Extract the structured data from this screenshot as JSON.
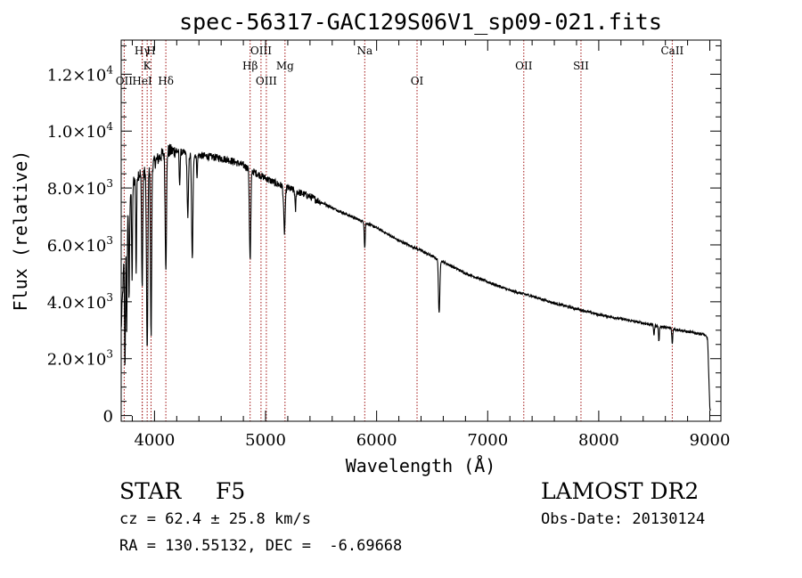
{
  "chart_data": {
    "type": "line",
    "title": "spec-56317-GAC129S06V1_sp09-021.fits",
    "xlabel": "Wavelength (Å)",
    "ylabel": "Flux (relative)",
    "xlim": [
      3700,
      9100
    ],
    "ylim": [
      -200,
      13200
    ],
    "grid": false,
    "x_ticks": [
      {
        "value": 4000,
        "label": "4000"
      },
      {
        "value": 5000,
        "label": "5000"
      },
      {
        "value": 6000,
        "label": "6000"
      },
      {
        "value": 7000,
        "label": "7000"
      },
      {
        "value": 8000,
        "label": "8000"
      },
      {
        "value": 9000,
        "label": "9000"
      }
    ],
    "y_ticks": [
      {
        "value": 0,
        "mantissa": "0",
        "exp": ""
      },
      {
        "value": 2000,
        "mantissa": "2.0×10",
        "exp": "3"
      },
      {
        "value": 4000,
        "mantissa": "4.0×10",
        "exp": "3"
      },
      {
        "value": 6000,
        "mantissa": "6.0×10",
        "exp": "3"
      },
      {
        "value": 8000,
        "mantissa": "8.0×10",
        "exp": "3"
      },
      {
        "value": 10000,
        "mantissa": "1.0×10",
        "exp": "4"
      },
      {
        "value": 12000,
        "mantissa": "1.2×10",
        "exp": "4"
      }
    ],
    "lines": [
      {
        "label": "Hγ",
        "wavelength": 3890,
        "row": 1
      },
      {
        "label": "H",
        "wavelength": 3969,
        "row": 1
      },
      {
        "label": "K",
        "wavelength": 3934,
        "row": 2
      },
      {
        "label": "OII",
        "wavelength": 3727,
        "row": 3
      },
      {
        "label": "HeI",
        "wavelength": 3889,
        "row": 3
      },
      {
        "label": "Hδ",
        "wavelength": 4102,
        "row": 3
      },
      {
        "label": "OIII",
        "wavelength": 4959,
        "row": 1
      },
      {
        "label": "Hβ",
        "wavelength": 4861,
        "row": 2
      },
      {
        "label": "OIII",
        "wavelength": 5007,
        "row": 3
      },
      {
        "label": "Mg",
        "wavelength": 5175,
        "row": 2
      },
      {
        "label": "Na",
        "wavelength": 5893,
        "row": 1
      },
      {
        "label": "OI",
        "wavelength": 6364,
        "row": 3
      },
      {
        "label": "OII",
        "wavelength": 7325,
        "row": 2
      },
      {
        "label": "SII",
        "wavelength": 7840,
        "row": 2
      },
      {
        "label": "CaII",
        "wavelength": 8662,
        "row": 1
      }
    ],
    "continuum": [
      [
        3700,
        3000
      ],
      [
        3730,
        6000
      ],
      [
        3760,
        7400
      ],
      [
        3800,
        8100
      ],
      [
        3840,
        8500
      ],
      [
        3900,
        8500
      ],
      [
        4000,
        8900
      ],
      [
        4050,
        9100
      ],
      [
        4100,
        9300
      ],
      [
        4200,
        9300
      ],
      [
        4300,
        9200
      ],
      [
        4400,
        9150
      ],
      [
        4500,
        9100
      ],
      [
        4600,
        9050
      ],
      [
        4700,
        8950
      ],
      [
        4800,
        8800
      ],
      [
        4900,
        8550
      ],
      [
        5000,
        8350
      ],
      [
        5100,
        8150
      ],
      [
        5200,
        8000
      ],
      [
        5400,
        7700
      ],
      [
        5600,
        7300
      ],
      [
        5800,
        6950
      ],
      [
        6000,
        6600
      ],
      [
        6200,
        6150
      ],
      [
        6400,
        5800
      ],
      [
        6600,
        5400
      ],
      [
        6800,
        5000
      ],
      [
        7000,
        4700
      ],
      [
        7200,
        4400
      ],
      [
        7400,
        4200
      ],
      [
        7600,
        3950
      ],
      [
        7800,
        3750
      ],
      [
        8000,
        3550
      ],
      [
        8200,
        3400
      ],
      [
        8400,
        3250
      ],
      [
        8600,
        3100
      ],
      [
        8800,
        2950
      ],
      [
        8950,
        2850
      ],
      [
        8980,
        2700
      ],
      [
        9000,
        300
      ]
    ],
    "absorption": [
      {
        "center": 3734,
        "depth": 4500,
        "width": 4
      },
      {
        "center": 3750,
        "depth": 3800,
        "width": 4
      },
      {
        "center": 3771,
        "depth": 3500,
        "width": 4
      },
      {
        "center": 3798,
        "depth": 3200,
        "width": 4
      },
      {
        "center": 3835,
        "depth": 3400,
        "width": 4
      },
      {
        "center": 3889,
        "depth": 4000,
        "width": 5
      },
      {
        "center": 3934,
        "depth": 6500,
        "width": 6
      },
      {
        "center": 3969,
        "depth": 6000,
        "width": 5
      },
      {
        "center": 4102,
        "depth": 4000,
        "width": 6
      },
      {
        "center": 4226,
        "depth": 1200,
        "width": 4
      },
      {
        "center": 4300,
        "depth": 2200,
        "width": 6
      },
      {
        "center": 4340,
        "depth": 3700,
        "width": 6
      },
      {
        "center": 4383,
        "depth": 700,
        "width": 4
      },
      {
        "center": 4861,
        "depth": 3200,
        "width": 6
      },
      {
        "center": 5170,
        "depth": 1600,
        "width": 7
      },
      {
        "center": 5269,
        "depth": 700,
        "width": 4
      },
      {
        "center": 5893,
        "depth": 900,
        "width": 4
      },
      {
        "center": 6563,
        "depth": 1900,
        "width": 6
      },
      {
        "center": 8498,
        "depth": 350,
        "width": 4
      },
      {
        "center": 8542,
        "depth": 550,
        "width": 4
      },
      {
        "center": 8662,
        "depth": 550,
        "width": 4
      }
    ]
  },
  "info": {
    "object_class": "STAR",
    "subclass": "F5",
    "survey": "LAMOST DR2",
    "cz": "cz = 62.4 ± 25.8 km/s",
    "obs_date": "Obs-Date: 20130124",
    "coords": "RA = 130.55132, DEC =  -6.69668"
  },
  "colors": {
    "spectrum": "#000000",
    "line_markers": "#a01010",
    "axes": "#000000",
    "background": "#ffffff"
  }
}
